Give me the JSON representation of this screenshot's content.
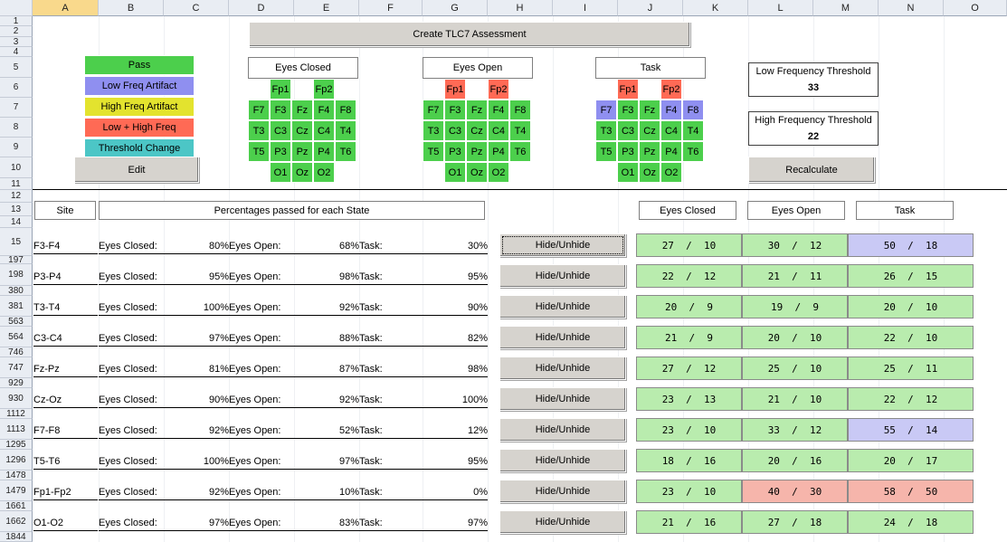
{
  "colors": {
    "pass": "#4ccf4c",
    "low_freq": "#8f8ff0",
    "high_freq": "#e3e32e",
    "low_high": "#ff6a55",
    "threshold_change": "#4cc6c6",
    "result_green": "#b9ecae",
    "result_blue": "#c9c9f5",
    "result_red": "#f6b5ab"
  },
  "columns": [
    "A",
    "B",
    "C",
    "D",
    "E",
    "F",
    "G",
    "H",
    "I",
    "J",
    "K",
    "L",
    "M",
    "N",
    "O"
  ],
  "rows": [
    "1",
    "2",
    "3",
    "4",
    "5",
    "6",
    "7",
    "8",
    "9",
    "10",
    "11",
    "12",
    "13",
    "14",
    "15",
    "197",
    "198",
    "380",
    "381",
    "563",
    "564",
    "746",
    "747",
    "929",
    "930",
    "1112",
    "1113",
    "1295",
    "1296",
    "1478",
    "1479",
    "1661",
    "1662",
    "1844"
  ],
  "create_button": "Create TLC7 Assessment",
  "legend": [
    {
      "label": "Pass",
      "color": "pass"
    },
    {
      "label": "Low Freq Artifact",
      "color": "low_freq"
    },
    {
      "label": "High Freq Artifact",
      "color": "high_freq"
    },
    {
      "label": "Low + High Freq",
      "color": "low_high"
    },
    {
      "label": "Threshold Change",
      "color": "threshold_change"
    }
  ],
  "edit_button": "Edit",
  "headmaps": [
    {
      "title": "Eyes Closed",
      "colors": {
        "Fp1": "pass",
        "Fp2": "pass",
        "F7": "pass",
        "F3": "pass",
        "Fz": "pass",
        "F4": "pass",
        "F8": "pass",
        "T3": "pass",
        "C3": "pass",
        "Cz": "pass",
        "C4": "pass",
        "T4": "pass",
        "T5": "pass",
        "P3": "pass",
        "Pz": "pass",
        "P4": "pass",
        "T6": "pass",
        "O1": "pass",
        "Oz": "pass",
        "O2": "pass"
      }
    },
    {
      "title": "Eyes Open",
      "colors": {
        "Fp1": "low_high",
        "Fp2": "low_high",
        "F7": "pass",
        "F3": "pass",
        "Fz": "pass",
        "F4": "pass",
        "F8": "pass",
        "T3": "pass",
        "C3": "pass",
        "Cz": "pass",
        "C4": "pass",
        "T4": "pass",
        "T5": "pass",
        "P3": "pass",
        "Pz": "pass",
        "P4": "pass",
        "T6": "pass",
        "O1": "pass",
        "Oz": "pass",
        "O2": "pass"
      }
    },
    {
      "title": "Task",
      "colors": {
        "Fp1": "low_high",
        "Fp2": "low_high",
        "F7": "low_freq",
        "F3": "pass",
        "Fz": "pass",
        "F4": "low_freq",
        "F8": "low_freq",
        "T3": "pass",
        "C3": "pass",
        "Cz": "pass",
        "C4": "pass",
        "T4": "pass",
        "T5": "pass",
        "P3": "pass",
        "Pz": "pass",
        "P4": "pass",
        "T6": "pass",
        "O1": "pass",
        "Oz": "pass",
        "O2": "pass"
      }
    }
  ],
  "low_threshold": {
    "label": "Low Frequency Threshold",
    "value": "33"
  },
  "high_threshold": {
    "label": "High Frequency Threshold",
    "value": "22"
  },
  "recalc_button": "Recalculate",
  "table_headers": {
    "site": "Site",
    "percent": "Percentages passed for each State",
    "ec": "Eyes Closed",
    "eo": "Eyes Open",
    "task": "Task"
  },
  "labels": {
    "ec": "Eyes Closed:",
    "eo": "Eyes Open:",
    "task": "Task:"
  },
  "hide_label": "Hide/Unhide",
  "results": [
    {
      "site": "F3-F4",
      "ec": "80%",
      "eo": "68%",
      "task": "30%",
      "r_ec": "27  /  10",
      "r_eo": "30  /  12",
      "r_task": "50  /  18",
      "c": [
        "result_green",
        "result_green",
        "result_blue"
      ]
    },
    {
      "site": "P3-P4",
      "ec": "95%",
      "eo": "98%",
      "task": "95%",
      "r_ec": "22  /  12",
      "r_eo": "21  /  11",
      "r_task": "26  /  15",
      "c": [
        "result_green",
        "result_green",
        "result_green"
      ]
    },
    {
      "site": "T3-T4",
      "ec": "100%",
      "eo": "92%",
      "task": "90%",
      "r_ec": "20  /  9",
      "r_eo": "19  /  9",
      "r_task": "20  /  10",
      "c": [
        "result_green",
        "result_green",
        "result_green"
      ]
    },
    {
      "site": "C3-C4",
      "ec": "97%",
      "eo": "88%",
      "task": "82%",
      "r_ec": "21  /  9",
      "r_eo": "20  /  10",
      "r_task": "22  /  10",
      "c": [
        "result_green",
        "result_green",
        "result_green"
      ]
    },
    {
      "site": "Fz-Pz",
      "ec": "81%",
      "eo": "87%",
      "task": "98%",
      "r_ec": "27  /  12",
      "r_eo": "25  /  10",
      "r_task": "25  /  11",
      "c": [
        "result_green",
        "result_green",
        "result_green"
      ]
    },
    {
      "site": "Cz-Oz",
      "ec": "90%",
      "eo": "92%",
      "task": "100%",
      "r_ec": "23  /  13",
      "r_eo": "21  /  10",
      "r_task": "22  /  12",
      "c": [
        "result_green",
        "result_green",
        "result_green"
      ]
    },
    {
      "site": "F7-F8",
      "ec": "92%",
      "eo": "52%",
      "task": "12%",
      "r_ec": "23  /  10",
      "r_eo": "33  /  12",
      "r_task": "55  /  14",
      "c": [
        "result_green",
        "result_green",
        "result_blue"
      ]
    },
    {
      "site": "T5-T6",
      "ec": "100%",
      "eo": "97%",
      "task": "95%",
      "r_ec": "18  /  16",
      "r_eo": "20  /  16",
      "r_task": "20  /  17",
      "c": [
        "result_green",
        "result_green",
        "result_green"
      ]
    },
    {
      "site": "Fp1-Fp2",
      "ec": "92%",
      "eo": "10%",
      "task": "0%",
      "r_ec": "23  /  10",
      "r_eo": "40  /  30",
      "r_task": "58  /  50",
      "c": [
        "result_green",
        "result_red",
        "result_red"
      ]
    },
    {
      "site": "O1-O2",
      "ec": "97%",
      "eo": "83%",
      "task": "97%",
      "r_ec": "21  /  16",
      "r_eo": "27  /  18",
      "r_task": "24  /  18",
      "c": [
        "result_green",
        "result_green",
        "result_green"
      ]
    }
  ]
}
